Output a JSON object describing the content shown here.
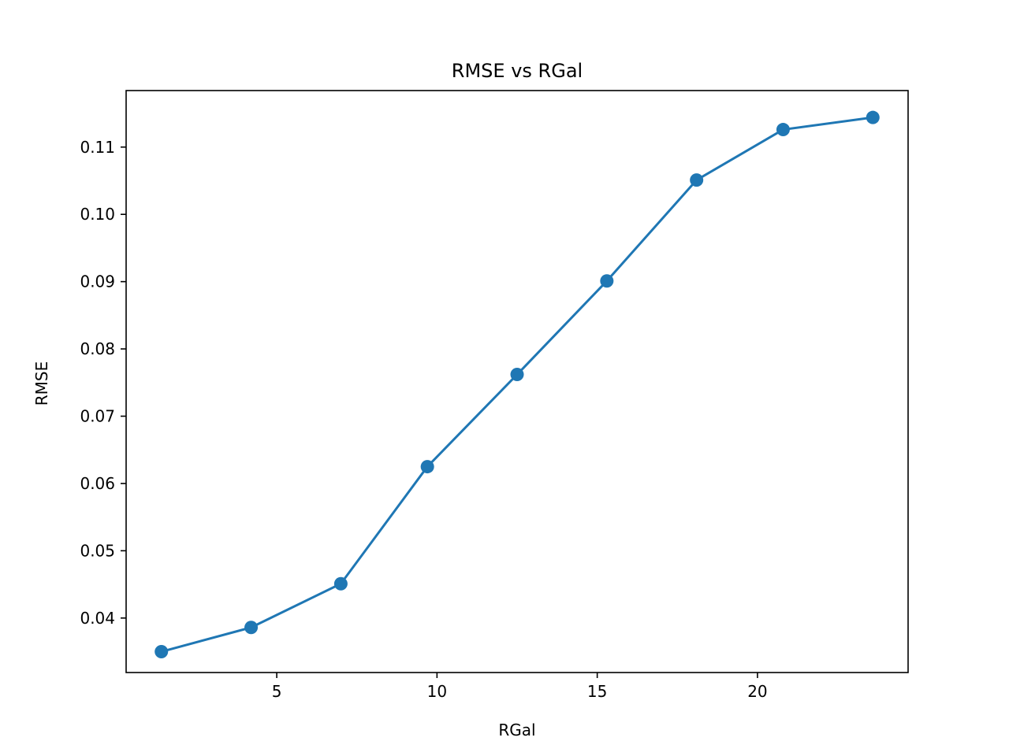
{
  "chart_data": {
    "type": "line",
    "title": "RMSE vs RGal",
    "xlabel": "RGal",
    "ylabel": "RMSE",
    "xlim": [
      0.3,
      24.7
    ],
    "ylim": [
      0.0319,
      0.1184
    ],
    "xticks": [
      5,
      10,
      15,
      20
    ],
    "xtick_labels": [
      "5",
      "10",
      "15",
      "20"
    ],
    "yticks": [
      0.04,
      0.05,
      0.06,
      0.07,
      0.08,
      0.09,
      0.1,
      0.11
    ],
    "ytick_labels": [
      "0.04",
      "0.05",
      "0.06",
      "0.07",
      "0.08",
      "0.09",
      "0.10",
      "0.11"
    ],
    "grid": false,
    "series": [
      {
        "color": "#1f77b4",
        "marker": "circle",
        "x": [
          1.4,
          4.2,
          7.0,
          9.7,
          12.5,
          15.3,
          18.1,
          20.8,
          23.6
        ],
        "y": [
          0.035,
          0.0386,
          0.0451,
          0.0625,
          0.0762,
          0.0901,
          0.1051,
          0.1126,
          0.1144
        ]
      }
    ]
  }
}
